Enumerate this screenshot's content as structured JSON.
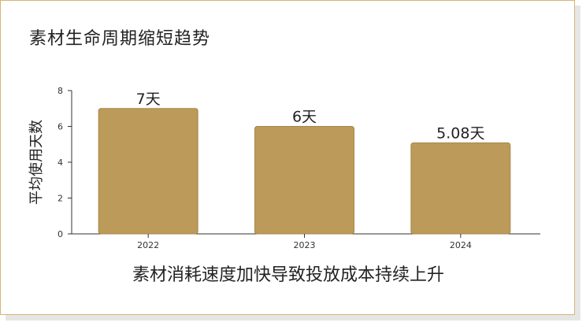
{
  "title": "素材生命周期缩短趋势",
  "caption": "素材消耗速度加快导致投放成本持续上升",
  "colors": {
    "bar": "#bb9a5a",
    "bar_edge": "#a88848",
    "axis": "#333333",
    "frame": "#d4b870"
  },
  "chart_data": {
    "type": "bar",
    "categories": [
      "2022",
      "2023",
      "2024"
    ],
    "values": [
      7,
      6,
      5.08
    ],
    "data_labels": [
      "7天",
      "6天",
      "5.08天"
    ],
    "ylabel": "平均使用天数",
    "xlabel": "",
    "ylim": [
      0,
      8
    ],
    "yticks": [
      0,
      2,
      4,
      6,
      8
    ],
    "grid": false
  }
}
